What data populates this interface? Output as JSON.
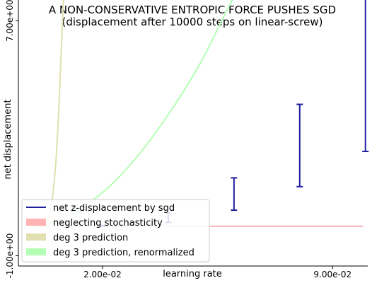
{
  "chart_data": {
    "type": "line",
    "title": "A NON-CONSERVATIVE ENTROPIC FORCE PUSHES SGD",
    "subtitle": "(displacement after 10000 steps on linear-screw)",
    "xlabel": "learning rate",
    "ylabel": "net displacement",
    "xlim": [
      -0.0056,
      0.1007
    ],
    "ylim": [
      -1.35,
      7.7
    ],
    "xticks": [
      {
        "value": 0.02,
        "label": "2.00e-02"
      },
      {
        "value": 0.09,
        "label": "9.00e-02"
      }
    ],
    "yticks": [
      {
        "value": 7.0,
        "label": "7.00e+00"
      },
      {
        "value": -1.0,
        "label": "-1.00e+00"
      }
    ],
    "grid": false,
    "legend_position": "bottom-left",
    "series": [
      {
        "name": "net z-displacement by sgd",
        "kind": "errorbar",
        "color": "#1f1f9f",
        "points": [
          {
            "x": 0.02,
            "low": 0.01,
            "high": 0.03
          },
          {
            "x": 0.04,
            "low": 0.13,
            "high": 0.46
          },
          {
            "x": 0.06,
            "low": 0.55,
            "high": 1.65
          },
          {
            "x": 0.08,
            "low": 1.35,
            "high": 4.15
          },
          {
            "x": 0.1,
            "low": 2.55,
            "high": 8.25
          }
        ]
      },
      {
        "name": "neglecting stochasticity",
        "kind": "line",
        "color": "#ffb3b3",
        "x": [
          -0.001,
          0.0993
        ],
        "y": [
          0.0,
          0.0
        ]
      },
      {
        "name": "deg 3 prediction",
        "kind": "curve",
        "color": "#e0e0b0",
        "x": [
          -0.001,
          0.002,
          0.004,
          0.006,
          0.008,
          0.009
        ],
        "y": [
          0.0,
          0.1,
          0.5,
          2.5,
          7.5,
          11.0
        ]
      },
      {
        "name": "deg 3 prediction, renormalized",
        "kind": "curve",
        "color": "#b3ffb3",
        "x": [
          -0.001,
          0.005,
          0.01,
          0.02,
          0.03,
          0.04,
          0.05,
          0.06,
          0.07
        ],
        "y": [
          0.0,
          0.14,
          0.4,
          1.15,
          2.3,
          3.8,
          5.6,
          7.8,
          9.5
        ]
      }
    ]
  }
}
